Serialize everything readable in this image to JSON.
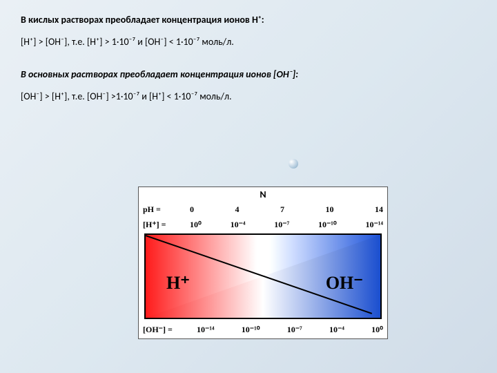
{
  "heading1": "В кислых растворах преобладает концентрация ионов Н⁺:",
  "formula1": "[H⁺] > [OH⁻], т.е. [H⁺] > 1·10⁻⁷ и [OH⁻] < 1·10⁻⁷ моль/л.",
  "heading2": "В основных растворах преобладает концентрация ионов [OH⁻]:",
  "formula2": "[OH⁻] > [H⁺], т.е. [OH⁻] >1·10⁻⁷ и [H⁺] < 1·10⁻⁷ моль/л.",
  "diagram": {
    "n_label": "N",
    "ph_label": "pH =",
    "h_label": "[H⁺] =",
    "oh_label": "[OH⁻] =",
    "h_big": "H⁺",
    "oh_big": "OH⁻",
    "ph_values": [
      "0",
      "4",
      "7",
      "10",
      "14"
    ],
    "h_values": [
      "10⁰",
      "10⁻⁴",
      "10⁻⁷",
      "10⁻¹⁰",
      "10⁻¹⁴"
    ],
    "oh_values": [
      "10⁻¹⁴",
      "10⁻¹⁰",
      "10⁻⁷",
      "10⁻⁴",
      "10⁰"
    ],
    "colors": {
      "acid": "#fc1a1a",
      "base": "#1a4ecf",
      "border": "#000000",
      "background": "#ffffff"
    },
    "type": "infographic"
  }
}
